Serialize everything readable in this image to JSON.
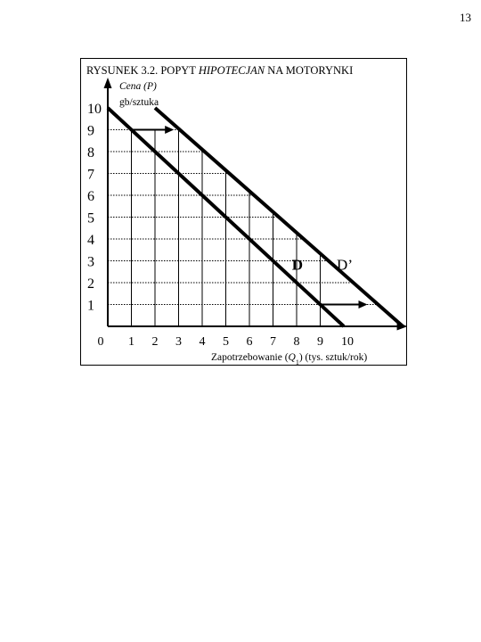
{
  "page_number": "13",
  "chart_data": {
    "type": "line",
    "title_parts": [
      "RYSUNEK 3.2. POPYT ",
      "HIPOTECJAN",
      " NA MOTORYNKI"
    ],
    "ylabel": "Cena (P)",
    "yunit": "gb/sztuka",
    "xlabel_parts": [
      "Zapotrzebowanie (",
      "Q",
      "1",
      ") (tys. sztuk/rok)"
    ],
    "xticks": [
      "0",
      "1",
      "2",
      "3",
      "4",
      "5",
      "6",
      "7",
      "8",
      "9",
      "10"
    ],
    "yticks": [
      "1",
      "2",
      "3",
      "4",
      "5",
      "6",
      "7",
      "8",
      "9",
      "10"
    ],
    "xlim": [
      0,
      12.7
    ],
    "ylim": [
      0,
      10
    ],
    "grid": true,
    "series": [
      {
        "name": "D",
        "x": [
          0,
          10
        ],
        "y": [
          10,
          0
        ]
      },
      {
        "name": "D’",
        "x": [
          2,
          12.5
        ],
        "y": [
          10,
          0
        ]
      }
    ],
    "shift_arrows": [
      {
        "x1": 1,
        "x2": 2.8,
        "y": 9
      },
      {
        "x1": 9,
        "x2": 11,
        "y": 1
      }
    ]
  }
}
